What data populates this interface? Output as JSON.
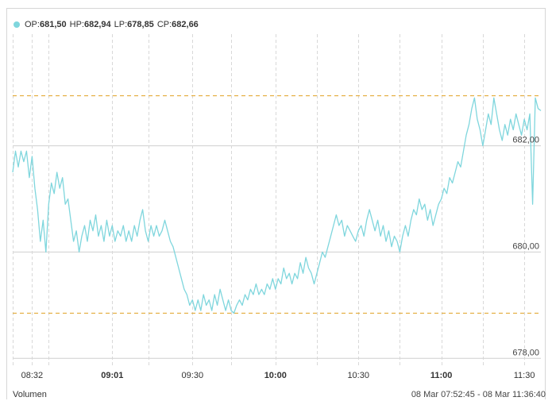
{
  "ohlc_bar": {
    "items": [
      {
        "key": "OP",
        "value": "681,50"
      },
      {
        "key": "HP",
        "value": "682,94"
      },
      {
        "key": "LP",
        "value": "678,85"
      },
      {
        "key": "CP",
        "value": "682,66"
      }
    ]
  },
  "footer": {
    "volume_label": "Volumen",
    "range_label": "08 Mar 07:52:45 - 08 Mar 11:36:40"
  },
  "colors": {
    "line": "#7fd6dd",
    "ref_line": "#e0a020",
    "grid": "#cfcfcf",
    "frame": "#d6d6d6"
  },
  "chart_data": {
    "type": "line",
    "title": "",
    "xlabel": "",
    "ylabel": "",
    "ylim": [
      677.9,
      684.1
    ],
    "xlim": [
      "08:25",
      "11:36"
    ],
    "y_ticks": [
      "682,00",
      "680,00",
      "678,00"
    ],
    "y_tick_values": [
      682,
      680,
      678
    ],
    "x_ticks": [
      {
        "label": "08:32",
        "value": "08:32",
        "bold": false
      },
      {
        "label": "09:01",
        "value": "09:01",
        "bold": true
      },
      {
        "label": "09:30",
        "value": "09:30",
        "bold": false
      },
      {
        "label": "10:00",
        "value": "10:00",
        "bold": true
      },
      {
        "label": "10:30",
        "value": "10:30",
        "bold": false
      },
      {
        "label": "11:00",
        "value": "11:00",
        "bold": true
      },
      {
        "label": "11:30",
        "value": "11:30",
        "bold": false
      }
    ],
    "extra_vlines": [
      "08:25",
      "08:38",
      "09:14",
      "09:44",
      "10:15",
      "10:45",
      "11:15"
    ],
    "reference_lines": [
      682.94,
      678.85
    ],
    "grid": true,
    "series": [
      {
        "points": [
          [
            "08:25",
            681.5
          ],
          [
            "08:26",
            681.9
          ],
          [
            "08:27",
            681.6
          ],
          [
            "08:28",
            681.9
          ],
          [
            "08:29",
            681.7
          ],
          [
            "08:30",
            681.9
          ],
          [
            "08:31",
            681.4
          ],
          [
            "08:32",
            681.8
          ],
          [
            "08:33",
            681.2
          ],
          [
            "08:34",
            680.8
          ],
          [
            "08:35",
            680.2
          ],
          [
            "08:36",
            680.6
          ],
          [
            "08:37",
            680.0
          ],
          [
            "08:38",
            680.9
          ],
          [
            "08:39",
            681.3
          ],
          [
            "08:40",
            681.1
          ],
          [
            "08:41",
            681.5
          ],
          [
            "08:42",
            681.2
          ],
          [
            "08:43",
            681.4
          ],
          [
            "08:44",
            680.9
          ],
          [
            "08:45",
            681.0
          ],
          [
            "08:46",
            680.6
          ],
          [
            "08:47",
            680.2
          ],
          [
            "08:48",
            680.4
          ],
          [
            "08:49",
            680.0
          ],
          [
            "08:50",
            680.3
          ],
          [
            "08:51",
            680.5
          ],
          [
            "08:52",
            680.2
          ],
          [
            "08:53",
            680.6
          ],
          [
            "08:54",
            680.4
          ],
          [
            "08:55",
            680.7
          ],
          [
            "08:56",
            680.3
          ],
          [
            "08:57",
            680.5
          ],
          [
            "08:58",
            680.2
          ],
          [
            "08:59",
            680.6
          ],
          [
            "09:00",
            680.3
          ],
          [
            "09:01",
            680.5
          ],
          [
            "09:02",
            680.2
          ],
          [
            "09:03",
            680.4
          ],
          [
            "09:04",
            680.3
          ],
          [
            "09:05",
            680.5
          ],
          [
            "09:06",
            680.2
          ],
          [
            "09:07",
            680.4
          ],
          [
            "09:08",
            680.2
          ],
          [
            "09:09",
            680.5
          ],
          [
            "09:10",
            680.3
          ],
          [
            "09:11",
            680.6
          ],
          [
            "09:12",
            680.8
          ],
          [
            "09:13",
            680.4
          ],
          [
            "09:14",
            680.2
          ],
          [
            "09:15",
            680.5
          ],
          [
            "09:16",
            680.3
          ],
          [
            "09:17",
            680.5
          ],
          [
            "09:18",
            680.3
          ],
          [
            "09:19",
            680.4
          ],
          [
            "09:20",
            680.6
          ],
          [
            "09:21",
            680.4
          ],
          [
            "09:22",
            680.2
          ],
          [
            "09:23",
            680.1
          ],
          [
            "09:24",
            679.9
          ],
          [
            "09:25",
            679.7
          ],
          [
            "09:26",
            679.5
          ],
          [
            "09:27",
            679.3
          ],
          [
            "09:28",
            679.2
          ],
          [
            "09:29",
            679.0
          ],
          [
            "09:30",
            679.1
          ],
          [
            "09:31",
            678.9
          ],
          [
            "09:32",
            679.1
          ],
          [
            "09:33",
            678.9
          ],
          [
            "09:34",
            679.2
          ],
          [
            "09:35",
            679.0
          ],
          [
            "09:36",
            679.1
          ],
          [
            "09:37",
            678.9
          ],
          [
            "09:38",
            679.2
          ],
          [
            "09:39",
            679.0
          ],
          [
            "09:40",
            679.3
          ],
          [
            "09:41",
            679.1
          ],
          [
            "09:42",
            678.9
          ],
          [
            "09:43",
            679.1
          ],
          [
            "09:44",
            678.9
          ],
          [
            "09:45",
            678.85
          ],
          [
            "09:46",
            679.0
          ],
          [
            "09:47",
            679.1
          ],
          [
            "09:48",
            679.0
          ],
          [
            "09:49",
            679.2
          ],
          [
            "09:50",
            679.1
          ],
          [
            "09:51",
            679.3
          ],
          [
            "09:52",
            679.2
          ],
          [
            "09:53",
            679.4
          ],
          [
            "09:54",
            679.2
          ],
          [
            "09:55",
            679.3
          ],
          [
            "09:56",
            679.2
          ],
          [
            "09:57",
            679.4
          ],
          [
            "09:58",
            679.3
          ],
          [
            "09:59",
            679.5
          ],
          [
            "10:00",
            679.3
          ],
          [
            "10:01",
            679.5
          ],
          [
            "10:02",
            679.4
          ],
          [
            "10:03",
            679.7
          ],
          [
            "10:04",
            679.5
          ],
          [
            "10:05",
            679.6
          ],
          [
            "10:06",
            679.4
          ],
          [
            "10:07",
            679.6
          ],
          [
            "10:08",
            679.5
          ],
          [
            "10:09",
            679.8
          ],
          [
            "10:10",
            679.6
          ],
          [
            "10:11",
            679.9
          ],
          [
            "10:12",
            679.7
          ],
          [
            "10:13",
            679.6
          ],
          [
            "10:14",
            679.4
          ],
          [
            "10:15",
            679.6
          ],
          [
            "10:16",
            679.8
          ],
          [
            "10:17",
            680.0
          ],
          [
            "10:18",
            679.9
          ],
          [
            "10:19",
            680.1
          ],
          [
            "10:20",
            680.3
          ],
          [
            "10:21",
            680.5
          ],
          [
            "10:22",
            680.7
          ],
          [
            "10:23",
            680.5
          ],
          [
            "10:24",
            680.6
          ],
          [
            "10:25",
            680.3
          ],
          [
            "10:26",
            680.5
          ],
          [
            "10:27",
            680.4
          ],
          [
            "10:28",
            680.3
          ],
          [
            "10:29",
            680.2
          ],
          [
            "10:30",
            680.4
          ],
          [
            "10:31",
            680.5
          ],
          [
            "10:32",
            680.3
          ],
          [
            "10:33",
            680.6
          ],
          [
            "10:34",
            680.8
          ],
          [
            "10:35",
            680.6
          ],
          [
            "10:36",
            680.4
          ],
          [
            "10:37",
            680.6
          ],
          [
            "10:38",
            680.3
          ],
          [
            "10:39",
            680.5
          ],
          [
            "10:40",
            680.2
          ],
          [
            "10:41",
            680.4
          ],
          [
            "10:42",
            680.1
          ],
          [
            "10:43",
            680.3
          ],
          [
            "10:44",
            680.2
          ],
          [
            "10:45",
            680.0
          ],
          [
            "10:46",
            680.3
          ],
          [
            "10:47",
            680.5
          ],
          [
            "10:48",
            680.3
          ],
          [
            "10:49",
            680.6
          ],
          [
            "10:50",
            680.8
          ],
          [
            "10:51",
            680.7
          ],
          [
            "10:52",
            681.0
          ],
          [
            "10:53",
            680.8
          ],
          [
            "10:54",
            680.9
          ],
          [
            "10:55",
            680.6
          ],
          [
            "10:56",
            680.8
          ],
          [
            "10:57",
            680.5
          ],
          [
            "10:58",
            680.7
          ],
          [
            "10:59",
            680.9
          ],
          [
            "11:00",
            681.0
          ],
          [
            "11:01",
            681.2
          ],
          [
            "11:02",
            681.1
          ],
          [
            "11:03",
            681.4
          ],
          [
            "11:04",
            681.3
          ],
          [
            "11:05",
            681.5
          ],
          [
            "11:06",
            681.7
          ],
          [
            "11:07",
            681.6
          ],
          [
            "11:08",
            681.9
          ],
          [
            "11:09",
            682.2
          ],
          [
            "11:10",
            682.4
          ],
          [
            "11:11",
            682.7
          ],
          [
            "11:12",
            682.9
          ],
          [
            "11:13",
            682.5
          ],
          [
            "11:14",
            682.3
          ],
          [
            "11:15",
            682.0
          ],
          [
            "11:16",
            682.3
          ],
          [
            "11:17",
            682.6
          ],
          [
            "11:18",
            682.4
          ],
          [
            "11:19",
            682.9
          ],
          [
            "11:20",
            682.6
          ],
          [
            "11:21",
            682.3
          ],
          [
            "11:22",
            682.1
          ],
          [
            "11:23",
            682.4
          ],
          [
            "11:24",
            682.2
          ],
          [
            "11:25",
            682.5
          ],
          [
            "11:26",
            682.3
          ],
          [
            "11:27",
            682.6
          ],
          [
            "11:28",
            682.4
          ],
          [
            "11:29",
            682.2
          ],
          [
            "11:30",
            682.5
          ],
          [
            "11:31",
            682.3
          ],
          [
            "11:32",
            682.6
          ],
          [
            "11:33",
            680.9
          ],
          [
            "11:34",
            682.9
          ],
          [
            "11:35",
            682.7
          ],
          [
            "11:36",
            682.66
          ]
        ]
      }
    ]
  }
}
